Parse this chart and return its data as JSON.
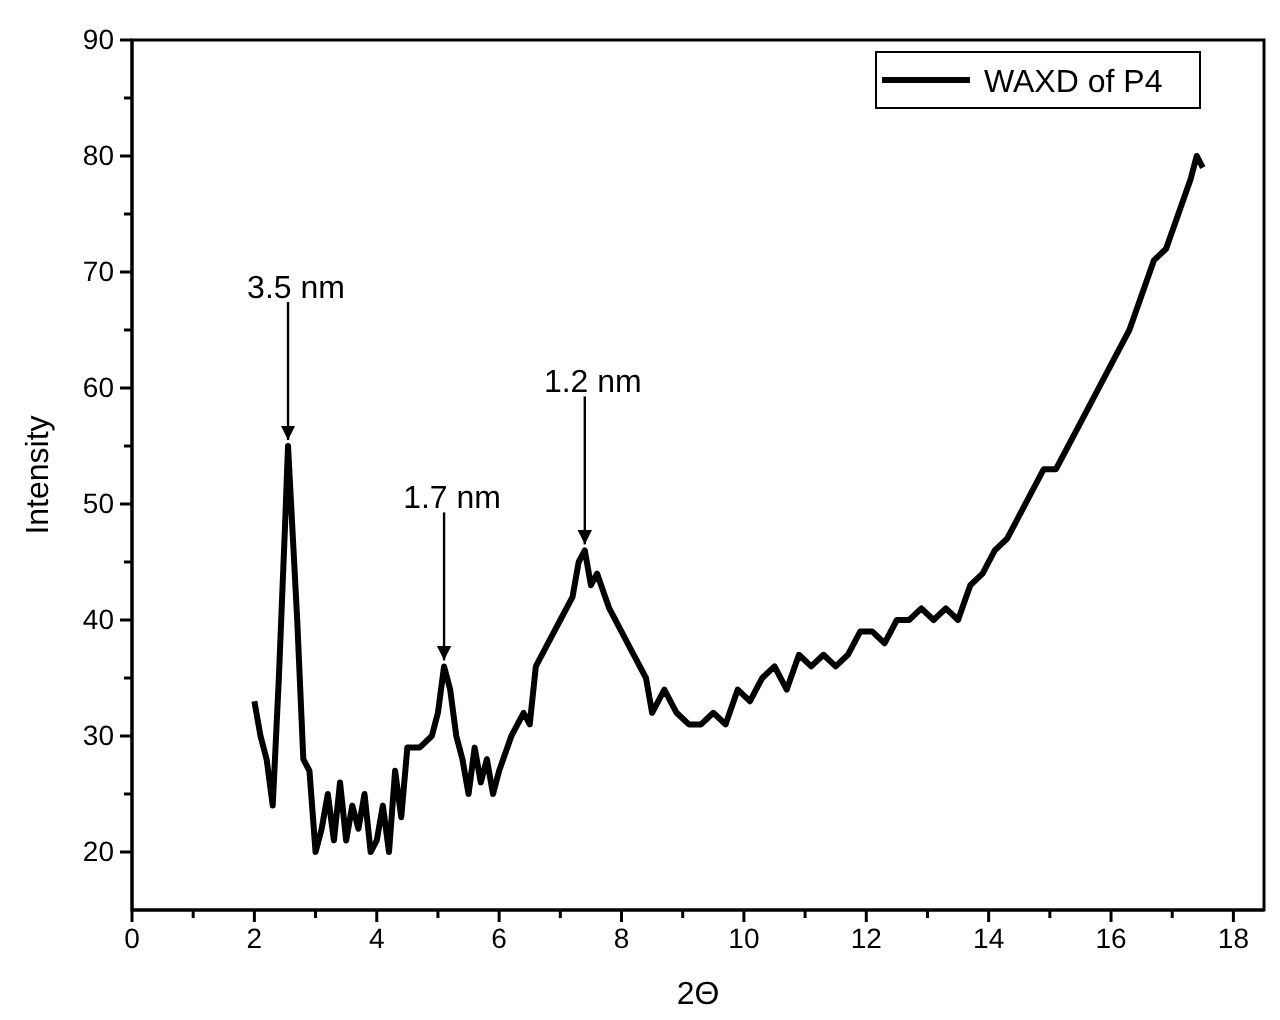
{
  "chart_data": {
    "type": "line",
    "xlabel": "2Θ",
    "ylabel": "Intensity",
    "xlim": [
      0,
      18.5
    ],
    "ylim": [
      15,
      90
    ],
    "xticks": [
      0,
      {
        "value": 1,
        "label": null
      },
      2,
      {
        "value": 3,
        "label": null
      },
      4,
      {
        "value": 5,
        "label": null
      },
      6,
      {
        "value": 7,
        "label": null
      },
      8,
      {
        "value": 9,
        "label": null
      },
      10,
      {
        "value": 11,
        "label": null
      },
      12,
      {
        "value": 13,
        "label": null
      },
      14,
      {
        "value": 15,
        "label": null
      },
      16,
      {
        "value": 17,
        "label": null
      },
      18
    ],
    "yticks": [
      20,
      {
        "value": 25,
        "label": null
      },
      30,
      {
        "value": 35,
        "label": null
      },
      40,
      {
        "value": 45,
        "label": null
      },
      50,
      {
        "value": 55,
        "label": null
      },
      60,
      {
        "value": 65,
        "label": null
      },
      70,
      {
        "value": 75,
        "label": null
      },
      80,
      {
        "value": 85,
        "label": null
      },
      90
    ],
    "legend": "top right",
    "marker": "none",
    "line_style": "solid",
    "annotations": [
      {
        "text": "3.5 nm",
        "x": 2.55,
        "y": 55
      },
      {
        "text": "1.7 nm",
        "x": 5.1,
        "y": 36
      },
      {
        "text": "1.2 nm",
        "x": 7.4,
        "y": 46
      }
    ],
    "series": [
      {
        "name": "WAXD of P4",
        "color": "#000000",
        "x": [
          2.0,
          2.1,
          2.2,
          2.3,
          2.4,
          2.5,
          2.55,
          2.6,
          2.7,
          2.8,
          2.9,
          3.0,
          3.1,
          3.2,
          3.3,
          3.4,
          3.5,
          3.6,
          3.7,
          3.8,
          3.9,
          4.0,
          4.1,
          4.2,
          4.3,
          4.4,
          4.5,
          4.7,
          4.9,
          5.0,
          5.1,
          5.2,
          5.3,
          5.4,
          5.5,
          5.6,
          5.7,
          5.8,
          5.9,
          6.0,
          6.2,
          6.4,
          6.5,
          6.6,
          6.8,
          7.0,
          7.2,
          7.3,
          7.4,
          7.5,
          7.6,
          7.8,
          8.0,
          8.2,
          8.4,
          8.5,
          8.7,
          8.9,
          9.1,
          9.3,
          9.5,
          9.7,
          9.9,
          10.1,
          10.3,
          10.5,
          10.7,
          10.9,
          11.1,
          11.3,
          11.5,
          11.7,
          11.9,
          12.1,
          12.3,
          12.5,
          12.7,
          12.9,
          13.1,
          13.3,
          13.5,
          13.7,
          13.9,
          14.1,
          14.3,
          14.5,
          14.7,
          14.9,
          15.1,
          15.3,
          15.5,
          15.7,
          15.9,
          16.1,
          16.3,
          16.5,
          16.7,
          16.9,
          17.1,
          17.3,
          17.4,
          17.5
        ],
        "values": [
          33,
          30,
          28,
          24,
          35,
          48,
          55,
          50,
          40,
          28,
          27,
          20,
          22,
          25,
          21,
          26,
          21,
          24,
          22,
          25,
          20,
          21,
          24,
          20,
          27,
          23,
          29,
          29,
          30,
          32,
          36,
          34,
          30,
          28,
          25,
          29,
          26,
          28,
          25,
          27,
          30,
          32,
          31,
          36,
          38,
          40,
          42,
          45,
          46,
          43,
          44,
          41,
          39,
          37,
          35,
          32,
          34,
          32,
          31,
          31,
          32,
          31,
          34,
          33,
          35,
          36,
          34,
          37,
          36,
          37,
          36,
          37,
          39,
          39,
          38,
          40,
          40,
          41,
          40,
          41,
          40,
          43,
          44,
          46,
          47,
          49,
          51,
          53,
          53,
          55,
          57,
          59,
          61,
          63,
          65,
          68,
          71,
          72,
          75,
          78,
          80,
          79
        ]
      }
    ]
  }
}
